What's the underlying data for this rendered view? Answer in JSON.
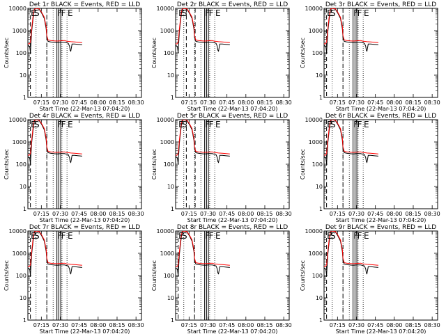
{
  "chart_data": {
    "type": "line",
    "panels": [
      {
        "title": "Det 1r BLACK = Events, RED = LLD",
        "xlabel": "Start Time (22-Mar-13 07:04:20)",
        "ylabel": "Counts/sec",
        "xticks": [
          "07:15",
          "07:30",
          "07:45",
          "08:00",
          "08:15",
          "08:30"
        ],
        "yticks": [
          "1",
          "10",
          "100",
          "1000",
          "10000"
        ],
        "event_markers": [
          "E",
          "S",
          "F",
          "F",
          "E"
        ],
        "x_minutes_range": [
          0,
          43
        ],
        "ylim": [
          1,
          10000
        ],
        "yscale": "log",
        "dashed_lines_min": [
          2,
          15
        ],
        "solid_lines_min": [
          23,
          24.5,
          26
        ],
        "dotted_lines_min": [
          6.5,
          15,
          20,
          27,
          31
        ]
      },
      {
        "title": "Det 2r BLACK = Events, RED = LLD",
        "xlabel": "Start Time (22-Mar-13 07:04:20)",
        "ylabel": "Counts/sec",
        "xticks": [
          "07:15",
          "07:30",
          "07:45",
          "08:00",
          "08:15",
          "08:30"
        ],
        "yticks": [
          "1",
          "10",
          "100",
          "1000",
          "10000"
        ],
        "event_markers": [
          "E",
          "S",
          "F",
          "F",
          "E"
        ],
        "x_minutes_range": [
          0,
          43
        ],
        "ylim": [
          1,
          10000
        ],
        "yscale": "log",
        "dashed_lines_min": [
          8.5,
          15.5
        ],
        "solid_lines_min": [
          23,
          24.5,
          26
        ],
        "dotted_lines_min": [
          6.5,
          15,
          20,
          27,
          31
        ]
      },
      {
        "title": "Det 3r BLACK = Events, RED = LLD",
        "xlabel": "Start Time (22-Mar-13 07:04:20)",
        "ylabel": "Counts/sec",
        "xticks": [
          "07:15",
          "07:30",
          "07:45",
          "08:00",
          "08:15",
          "08:30"
        ],
        "yticks": [
          "1",
          "10",
          "100",
          "1000",
          "10000"
        ],
        "event_markers": [
          "E",
          "S",
          "F",
          "F",
          "E"
        ],
        "x_minutes_range": [
          0,
          43
        ],
        "ylim": [
          1,
          10000
        ],
        "yscale": "log",
        "dashed_lines_min": [
          2,
          15
        ],
        "solid_lines_min": [
          23,
          24.5,
          26
        ],
        "dotted_lines_min": [
          6.5,
          15,
          20,
          27,
          31
        ]
      },
      {
        "title": "Det 4r BLACK = Events, RED = LLD",
        "xlabel": "Start Time (22-Mar-13 07:04:20)",
        "ylabel": "Counts/sec",
        "xticks": [
          "07:15",
          "07:30",
          "07:45",
          "08:00",
          "08:15",
          "08:30"
        ],
        "yticks": [
          "1",
          "10",
          "100",
          "1000",
          "10000"
        ],
        "event_markers": [
          "E",
          "S",
          "F",
          "F",
          "E"
        ],
        "x_minutes_range": [
          0,
          43
        ],
        "ylim": [
          1,
          10000
        ],
        "yscale": "log",
        "dashed_lines_min": [
          2,
          15
        ],
        "solid_lines_min": [
          23,
          24.5,
          26
        ],
        "dotted_lines_min": [
          6.5,
          15,
          20,
          27,
          31
        ]
      },
      {
        "title": "Det 5r BLACK = Events, RED = LLD",
        "xlabel": "Start Time (22-Mar-13 07:04:20)",
        "ylabel": "Counts/sec",
        "xticks": [
          "07:15",
          "07:30",
          "07:45",
          "08:00",
          "08:15",
          "08:30"
        ],
        "yticks": [
          "1",
          "10",
          "100",
          "1000",
          "10000"
        ],
        "event_markers": [
          "E",
          "S",
          "F",
          "F",
          "E"
        ],
        "x_minutes_range": [
          0,
          43
        ],
        "ylim": [
          1,
          10000
        ],
        "yscale": "log",
        "dashed_lines_min": [
          8.5,
          15.5
        ],
        "solid_lines_min": [
          23,
          24.5,
          26
        ],
        "dotted_lines_min": [
          6.5,
          15,
          20,
          27,
          31
        ]
      },
      {
        "title": "Det 6r BLACK = Events, RED = LLD",
        "xlabel": "Start Time (22-Mar-13 07:04:20)",
        "ylabel": "Counts/sec",
        "xticks": [
          "07:15",
          "07:30",
          "07:45",
          "08:00",
          "08:15",
          "08:30"
        ],
        "yticks": [
          "1",
          "10",
          "100",
          "1000",
          "10000"
        ],
        "event_markers": [
          "E",
          "S",
          "F",
          "F",
          "E"
        ],
        "x_minutes_range": [
          0,
          43
        ],
        "ylim": [
          1,
          10000
        ],
        "yscale": "log",
        "dashed_lines_min": [
          2,
          15
        ],
        "solid_lines_min": [
          23,
          24.5,
          26
        ],
        "dotted_lines_min": [
          6.5,
          15,
          20,
          27,
          31
        ]
      },
      {
        "title": "Det 7r BLACK = Events, RED = LLD",
        "xlabel": "Start Time (22-Mar-13 07:04:20)",
        "ylabel": "Counts/sec",
        "xticks": [
          "07:15",
          "07:30",
          "07:45",
          "08:00",
          "08:15",
          "08:30"
        ],
        "yticks": [
          "1",
          "10",
          "100",
          "1000",
          "10000"
        ],
        "event_markers": [
          "E",
          "S",
          "F",
          "F",
          "E"
        ],
        "x_minutes_range": [
          0,
          43
        ],
        "ylim": [
          1,
          10000
        ],
        "yscale": "log",
        "dashed_lines_min": [
          2,
          15
        ],
        "solid_lines_min": [
          23,
          24.5,
          26
        ],
        "dotted_lines_min": [
          6.5,
          15,
          20,
          27,
          31
        ]
      },
      {
        "title": "Det 8r BLACK = Events, RED = LLD",
        "xlabel": "Start Time (22-Mar-13 07:04:20)",
        "ylabel": "Counts/sec",
        "xticks": [
          "07:15",
          "07:30",
          "07:45",
          "08:00",
          "08:15",
          "08:30"
        ],
        "yticks": [
          "1",
          "10",
          "100",
          "1000",
          "10000"
        ],
        "event_markers": [
          "E",
          "S",
          "F",
          "F",
          "E"
        ],
        "x_minutes_range": [
          0,
          43
        ],
        "ylim": [
          1,
          10000
        ],
        "yscale": "log",
        "dashed_lines_min": [
          2,
          15
        ],
        "solid_lines_min": [
          23,
          24.5,
          26
        ],
        "dotted_lines_min": [
          6.5,
          15,
          20,
          27,
          31
        ]
      },
      {
        "title": "Det 9r BLACK = Events, RED = LLD",
        "xlabel": "Start Time (22-Mar-13 07:04:20)",
        "ylabel": "Counts/sec",
        "xticks": [
          "07:15",
          "07:30",
          "07:45",
          "08:00",
          "08:15",
          "08:30"
        ],
        "yticks": [
          "1",
          "10",
          "100",
          "1000",
          "10000"
        ],
        "event_markers": [
          "E",
          "S",
          "F",
          "F",
          "E"
        ],
        "x_minutes_range": [
          0,
          43
        ],
        "ylim": [
          1,
          10000
        ],
        "yscale": "log",
        "dashed_lines_min": [
          2,
          15
        ],
        "solid_lines_min": [
          23,
          24.5,
          26
        ],
        "dotted_lines_min": [
          6.5,
          15,
          20,
          27,
          31
        ]
      }
    ],
    "series": [
      {
        "name": "BLACK = Events",
        "color": "#000000",
        "points": [
          [
            0,
            220
          ],
          [
            1,
            200
          ],
          [
            1.5,
            180
          ],
          [
            2,
            100
          ],
          [
            2.5,
            300
          ],
          [
            3,
            900
          ],
          [
            4,
            3000
          ],
          [
            5,
            8000
          ],
          [
            6,
            10000
          ],
          [
            7,
            10000
          ],
          [
            9,
            9000
          ],
          [
            11,
            6000
          ],
          [
            13,
            3500
          ],
          [
            14.5,
            1200
          ],
          [
            15,
            500
          ],
          [
            16,
            330
          ],
          [
            18,
            310
          ],
          [
            20,
            300
          ],
          [
            23,
            290
          ],
          [
            26,
            300
          ],
          [
            29,
            300
          ],
          [
            31,
            280
          ],
          [
            32,
            270
          ],
          [
            33,
            200
          ],
          [
            33.5,
            130
          ],
          [
            34,
            120
          ],
          [
            35,
            250
          ],
          [
            37,
            250
          ],
          [
            40,
            240
          ],
          [
            43,
            230
          ]
        ]
      },
      {
        "name": "RED = LLD",
        "color": "#ff0000",
        "points": [
          [
            0,
            260
          ],
          [
            1,
            250
          ],
          [
            2,
            300
          ],
          [
            3,
            1200
          ],
          [
            4,
            4000
          ],
          [
            5,
            9000
          ],
          [
            6,
            10000
          ],
          [
            9,
            9500
          ],
          [
            11,
            6500
          ],
          [
            13,
            4000
          ],
          [
            14.5,
            1500
          ],
          [
            15,
            600
          ],
          [
            16,
            380
          ],
          [
            18,
            360
          ],
          [
            20,
            350
          ],
          [
            23,
            340
          ],
          [
            26,
            350
          ],
          [
            29,
            360
          ],
          [
            31,
            330
          ],
          [
            32,
            330
          ],
          [
            34,
            320
          ],
          [
            37,
            310
          ],
          [
            40,
            300
          ],
          [
            43,
            290
          ]
        ]
      }
    ]
  }
}
